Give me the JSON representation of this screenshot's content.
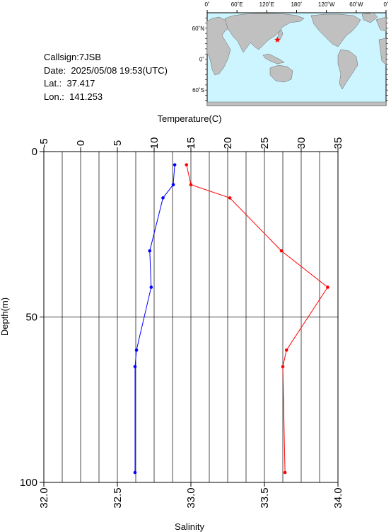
{
  "info": {
    "callsign_label": "Callsign:",
    "callsign": "7JSB",
    "date_label": "Date:",
    "date": "2025/05/08 19:53(UTC)",
    "lat_label": "Lat.:",
    "lat": "37.417",
    "lon_label": "Lon.:",
    "lon": "141.253"
  },
  "map": {
    "lon_ticks": [
      "0˚",
      "60˚E",
      "120˚E",
      "180˚",
      "120˚W",
      "60˚W",
      "0˚"
    ],
    "lat_ticks": [
      "60˚N",
      "0˚",
      "60˚S"
    ],
    "station_lat": 37.417,
    "station_lon": 141.253,
    "colors": {
      "ocean": "#ccf5ff",
      "land": "#c0c0c0",
      "marker": "#ff0000"
    }
  },
  "chart_data": {
    "type": "line",
    "ylabel": "Depth(m)",
    "ylim": [
      100,
      0
    ],
    "y_ticks": [
      "0",
      "50",
      "100"
    ],
    "grid": true,
    "x_axes": [
      {
        "name": "Temperature(C)",
        "position": "top",
        "range": [
          -5,
          35
        ],
        "ticks": [
          "-5",
          "0",
          "5",
          "10",
          "15",
          "20",
          "25",
          "30",
          "35"
        ]
      },
      {
        "name": "Salinity",
        "position": "bottom",
        "range": [
          32.0,
          34.0
        ],
        "ticks": [
          "32.0",
          "32.5",
          "33.0",
          "33.5",
          "34.0"
        ]
      }
    ],
    "series": [
      {
        "axis": "Temperature(C)",
        "color": "#ff0000",
        "points": [
          [
            14.4,
            4
          ],
          [
            15.0,
            10
          ],
          [
            20.3,
            14
          ],
          [
            27.3,
            30
          ],
          [
            33.6,
            41
          ],
          [
            28.0,
            60
          ],
          [
            27.5,
            65
          ],
          [
            27.8,
            97
          ]
        ]
      },
      {
        "axis": "Salinity",
        "color": "#0000ff",
        "points": [
          [
            32.89,
            4
          ],
          [
            32.88,
            10
          ],
          [
            32.81,
            14
          ],
          [
            32.72,
            30
          ],
          [
            32.73,
            41
          ],
          [
            32.63,
            60
          ],
          [
            32.62,
            65
          ],
          [
            32.62,
            97
          ]
        ]
      }
    ]
  }
}
